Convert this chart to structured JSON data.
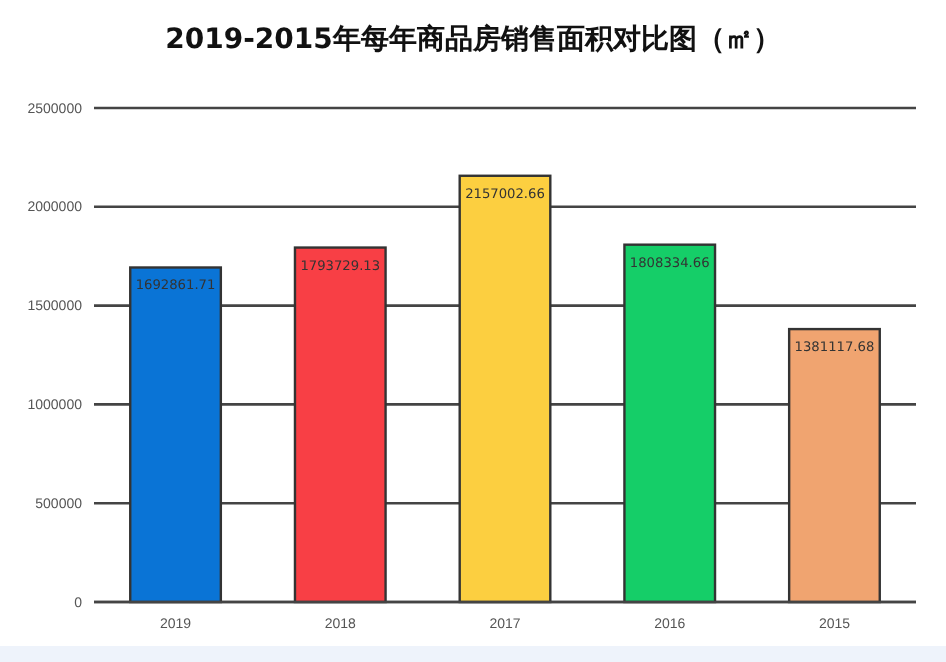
{
  "chart_data": {
    "type": "bar",
    "title": "2019-2015年每年商品房销售面积对比图（㎡）",
    "categories": [
      "2019",
      "2018",
      "2017",
      "2016",
      "2015"
    ],
    "values": [
      1692861.71,
      1793729.13,
      2157002.66,
      1808334.66,
      1381117.68
    ],
    "colors": [
      "#0a74d6",
      "#f83f45",
      "#fccf40",
      "#15ce68",
      "#f0a470"
    ],
    "ylim": [
      0,
      2500000
    ],
    "yticks": [
      0,
      500000,
      1000000,
      1500000,
      2000000,
      2500000
    ],
    "grid": "y",
    "data_labels": true
  }
}
